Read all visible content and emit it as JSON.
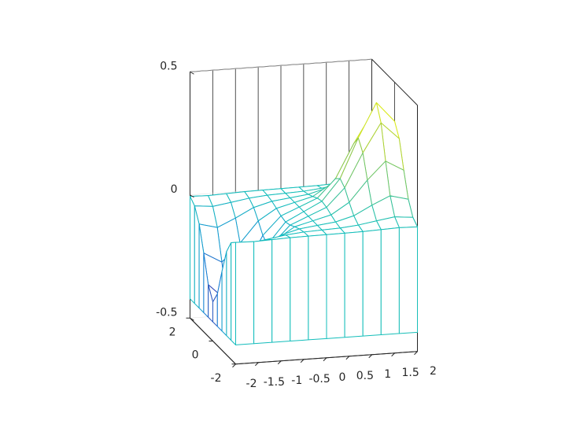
{
  "chart_data": {
    "type": "mesh",
    "x": [
      -2,
      -1.6,
      -1.2,
      -0.8,
      -0.4,
      0,
      0.4,
      0.8,
      1.2,
      1.6,
      2
    ],
    "y": [
      -2,
      -1.6,
      -1.2,
      -0.8,
      -0.4,
      0,
      0.4,
      0.8,
      1.2,
      1.6,
      2
    ],
    "z": [
      [
        -0.006,
        -0.008,
        -0.005,
        -0.002,
        -0.001,
        0,
        0.001,
        0.002,
        0.005,
        0.008,
        0.006
      ],
      [
        -0.026,
        -0.033,
        -0.022,
        -0.01,
        -0.003,
        0,
        0.003,
        0.01,
        0.022,
        0.033,
        0.026
      ],
      [
        -0.081,
        -0.1,
        -0.067,
        -0.029,
        -0.009,
        0,
        0.009,
        0.029,
        0.067,
        0.1,
        0.081
      ],
      [
        -0.18,
        -0.222,
        -0.15,
        -0.065,
        -0.019,
        0,
        0.019,
        0.065,
        0.15,
        0.222,
        0.18
      ],
      [
        -0.29,
        -0.359,
        -0.242,
        -0.105,
        -0.031,
        0,
        0.031,
        0.105,
        0.242,
        0.359,
        0.29
      ],
      [
        -0.341,
        -0.422,
        -0.284,
        -0.124,
        -0.037,
        0,
        0.037,
        0.124,
        0.284,
        0.422,
        0.341
      ],
      [
        -0.29,
        -0.359,
        -0.242,
        -0.105,
        -0.031,
        0,
        0.031,
        0.105,
        0.242,
        0.359,
        0.29
      ],
      [
        -0.18,
        -0.222,
        -0.15,
        -0.065,
        -0.019,
        0,
        0.019,
        0.065,
        0.15,
        0.222,
        0.18
      ],
      [
        -0.081,
        -0.1,
        -0.067,
        -0.029,
        -0.009,
        0,
        0.009,
        0.029,
        0.067,
        0.1,
        0.081
      ],
      [
        -0.026,
        -0.033,
        -0.022,
        -0.01,
        -0.003,
        0,
        0.003,
        0.01,
        0.022,
        0.033,
        0.026
      ],
      [
        -0.006,
        -0.008,
        -0.005,
        -0.002,
        -0.001,
        0,
        0.001,
        0.002,
        0.005,
        0.008,
        0.006
      ]
    ],
    "xlim": [
      -2,
      2
    ],
    "ylim": [
      -2,
      2
    ],
    "zlim": [
      -0.5,
      0.5
    ],
    "xticks": [
      -2,
      -1.5,
      -1,
      -0.5,
      0,
      0.5,
      1,
      1.5,
      2
    ],
    "yticks": [
      -2,
      0,
      2
    ],
    "zticks": [
      -0.5,
      0,
      0.5
    ],
    "grid": true,
    "colormap": "parula"
  }
}
